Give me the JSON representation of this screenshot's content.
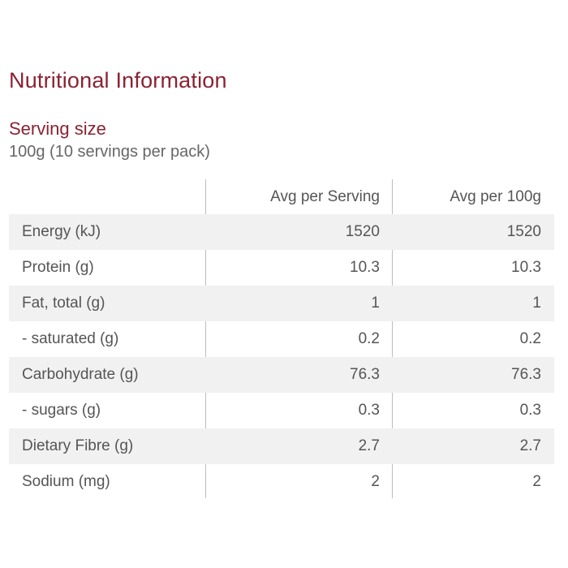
{
  "title": "Nutritional Information",
  "serving": {
    "label": "Serving size",
    "value": "100g (10 servings per pack)"
  },
  "table": {
    "headers": [
      "",
      "Avg per Serving",
      "Avg per 100g"
    ],
    "rows": [
      [
        "Energy (kJ)",
        "1520",
        "1520"
      ],
      [
        "Protein (g)",
        "10.3",
        "10.3"
      ],
      [
        "Fat, total (g)",
        "1",
        "1"
      ],
      [
        "- saturated (g)",
        "0.2",
        "0.2"
      ],
      [
        "Carbohydrate (g)",
        "76.3",
        "76.3"
      ],
      [
        "- sugars (g)",
        "0.3",
        "0.3"
      ],
      [
        "Dietary Fibre (g)",
        "2.7",
        "2.7"
      ],
      [
        "Sodium (mg)",
        "2",
        "2"
      ]
    ]
  },
  "colors": {
    "accent": "#8b2232",
    "row_shade": "#f1f1f1",
    "text": "#555555"
  }
}
